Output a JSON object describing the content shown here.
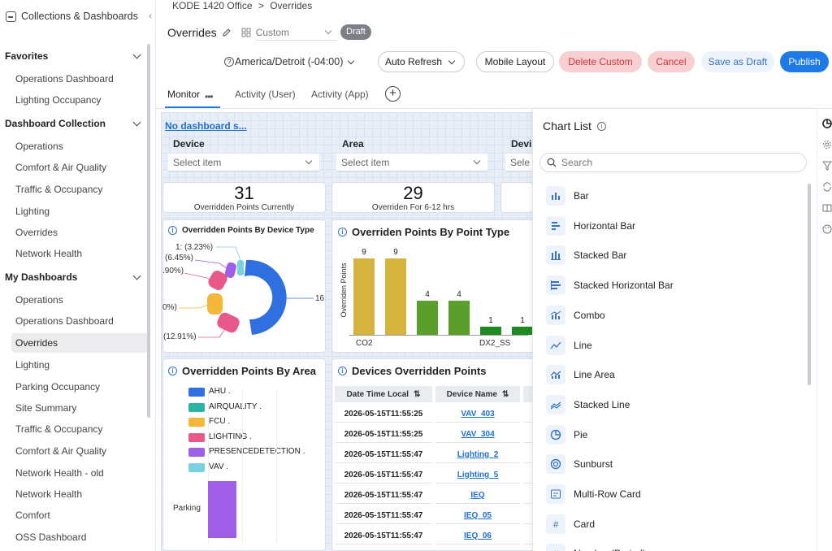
{
  "colors": {
    "accent": "#1e7ae6",
    "sidebar_active": "#ececee",
    "danger": "#d0353c",
    "gold": "#d4b43c",
    "green": "#5a9e2c",
    "dark_green": "#1f8a1f"
  },
  "sidebar": {
    "header": "Collections & Dashboards",
    "collapse_icon": "‹",
    "sections": [
      {
        "title": "Favorites",
        "items": [
          "Operations Dashboard",
          "Lighting Occupancy"
        ]
      },
      {
        "title": "Dashboard Collection",
        "items": [
          "Operations",
          "Comfort & Air Quality",
          "Traffic & Occupancy",
          "Lighting",
          "Overrides",
          "Network Health"
        ]
      },
      {
        "title": "My Dashboards",
        "items": [
          "Operations",
          "Operations Dashboard",
          "Overrides",
          "Lighting",
          "Parking Occupancy",
          "Site Summary",
          "Traffic & Occupancy",
          "Comfort & Air Quality",
          "Network Health - old",
          "Network Health",
          "Comfort",
          "OSS Dashboard"
        ]
      }
    ],
    "active_item": "Overrides"
  },
  "breadcrumb": {
    "parent": "KODE 1420 Office",
    "separator": ">",
    "current": "Overrides"
  },
  "header": {
    "title": "Overrides",
    "layout_select": "Custom",
    "badge": "Draft",
    "timezone": "America/Detroit (-04:00)",
    "buttons": {
      "auto_refresh": "Auto Refresh",
      "mobile_layout": "Mobile Layout",
      "delete_custom": "Delete Custom",
      "cancel": "Cancel",
      "save_draft": "Save as Draft",
      "publish": "Publish"
    }
  },
  "tabs": [
    {
      "label": "Monitor"
    },
    {
      "label": "Activity (User)"
    },
    {
      "label": "Activity (App)"
    }
  ],
  "tab_more": "•••",
  "tab_add": "+",
  "dashboard": {
    "no_dashboard": "No dashboard s...",
    "filters": [
      {
        "label": "Device",
        "placeholder": "Select item"
      },
      {
        "label": "Area",
        "placeholder": "Select item"
      },
      {
        "label": "Devi",
        "placeholder": "Sele"
      }
    ],
    "kpis": [
      {
        "value": "31",
        "label": "Overridden Points Currently"
      },
      {
        "value": "29",
        "label": "Overriden For 6-12 hrs"
      }
    ],
    "donut": {
      "title": "Overridden Points By Device Type",
      "labels": [
        "1:  (3.23%)",
        "(6.45%)",
        ".90%)",
        "0%)",
        "(12.91%)"
      ],
      "right_label": "16"
    },
    "point_type": {
      "title": "Overriden Points By Point Type",
      "ylabel": "Overriden Points",
      "bars": [
        {
          "value": 9,
          "color": "#d4b43c"
        },
        {
          "value": 9,
          "color": "#d4b43c"
        },
        {
          "value": 4,
          "color": "#5a9e2c"
        },
        {
          "value": 4,
          "color": "#5a9e2c"
        },
        {
          "value": 1,
          "color": "#1f8a1f"
        },
        {
          "value": 1,
          "color": "#1f8a1f"
        }
      ],
      "ticks": [
        "CO2",
        "DX2_SS"
      ]
    },
    "by_area": {
      "title": "Overridden Points By Area",
      "legend": [
        {
          "label": "AHU .",
          "color": "#2f6fe0"
        },
        {
          "label": "AIRQUALITY .",
          "color": "#2bb3a5"
        },
        {
          "label": "FCU .",
          "color": "#f5b73a"
        },
        {
          "label": "LIGHTING .",
          "color": "#e8588a"
        },
        {
          "label": "PRESENCEDETECTION .",
          "color": "#9f5ee6"
        },
        {
          "label": "VAV .",
          "color": "#79d2e0"
        }
      ],
      "category": "Parking"
    },
    "devices": {
      "title": "Devices Overridden Points",
      "columns": [
        "Date Time Local",
        "Device Name"
      ],
      "sort_icon": "⇅",
      "rows": [
        [
          "2026-05-15T11:55:25",
          "VAV_403"
        ],
        [
          "2026-05-15T11:55:25",
          "VAV_304"
        ],
        [
          "2026-05-15T11:55:47",
          "Lighting_2"
        ],
        [
          "2026-05-15T11:55:47",
          "Lighting_5"
        ],
        [
          "2026-05-15T11:55:47",
          "IEQ"
        ],
        [
          "2026-05-15T11:55:47",
          "IEQ_05"
        ],
        [
          "2026-05-15T11:55:47",
          "IEQ_06"
        ]
      ]
    }
  },
  "chart_list": {
    "title": "Chart List",
    "info": "i",
    "search_placeholder": "Search",
    "items": [
      "Bar",
      "Horizontal Bar",
      "Stacked Bar",
      "Stacked Horizontal Bar",
      "Combo",
      "Line",
      "Line Area",
      "Stacked Line",
      "Pie",
      "Sunburst",
      "Multi-Row Card",
      "Card",
      "Number (Period)"
    ]
  }
}
